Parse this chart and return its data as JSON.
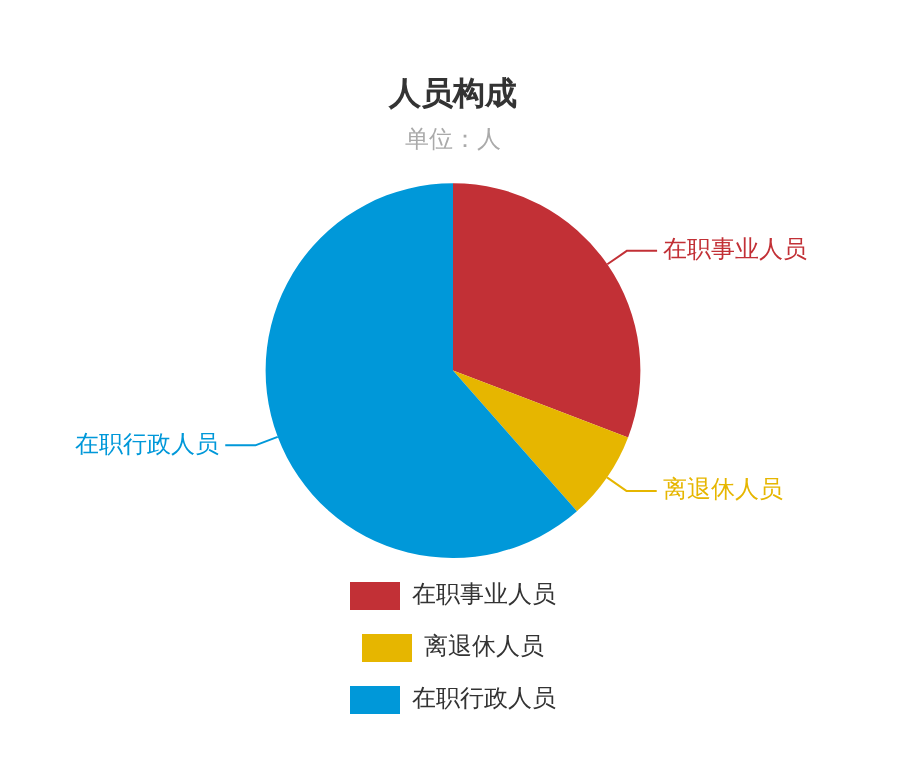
{
  "chart_data": {
    "type": "pie",
    "title": "人员构成",
    "subtitle": "单位：人",
    "categories": [
      "在职事业人员",
      "离退休人员",
      "在职行政人员"
    ],
    "values": [
      30.8,
      7.7,
      61.5
    ],
    "colors": [
      "#c23036",
      "#e6b600",
      "#0098d9"
    ],
    "legend": "bottom"
  }
}
